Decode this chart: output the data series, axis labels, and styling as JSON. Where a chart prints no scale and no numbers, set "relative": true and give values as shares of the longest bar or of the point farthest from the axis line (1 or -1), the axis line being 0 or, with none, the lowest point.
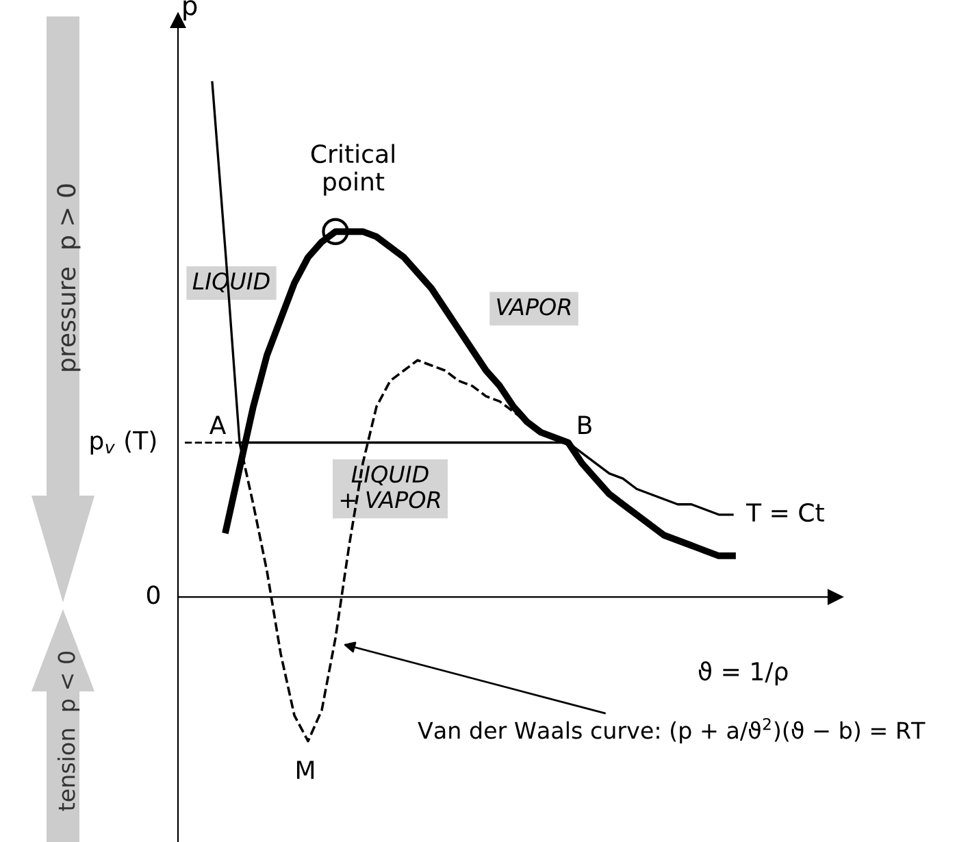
{
  "chart_data": {
    "type": "line",
    "relative": true,
    "xlabel": "ϑ = 1/ρ",
    "ylabel": "p",
    "categories": [
      null,
      null,
      null,
      null,
      null,
      null,
      null,
      null,
      null,
      null,
      null,
      null,
      null,
      null,
      null,
      null,
      null,
      null,
      null,
      null,
      null,
      null,
      null,
      null,
      null,
      null,
      null,
      null,
      null,
      null,
      null,
      null,
      null,
      null,
      null,
      null,
      null,
      null,
      null,
      null,
      null,
      null,
      null,
      null,
      null,
      null
    ],
    "series": [
      {
        "color": "#000000",
        "line_style": "dashed",
        "values": [
          0.3,
          0.3,
          0.3,
          0.3,
          0.3,
          null,
          null,
          null,
          null,
          null,
          null,
          null,
          null,
          null,
          null,
          null,
          null,
          null,
          null,
          null,
          null,
          null,
          null,
          null,
          null,
          null,
          null,
          null,
          null,
          null,
          null,
          null,
          null,
          null,
          null,
          null,
          null,
          null,
          null,
          null,
          null,
          null,
          null,
          null,
          null,
          null
        ]
      },
      {
        "name": "T = Ct",
        "color": "#000000",
        "line_style": "solid",
        "values": [
          null,
          null,
          1.0,
          0.66,
          0.3,
          0.3,
          0.3,
          0.3,
          0.3,
          0.3,
          0.3,
          0.3,
          0.3,
          0.3,
          0.3,
          0.3,
          0.3,
          0.3,
          0.3,
          0.3,
          0.3,
          0.3,
          0.3,
          0.3,
          0.3,
          0.3,
          0.3,
          0.3,
          0.3,
          0.28,
          0.26,
          0.24,
          0.23,
          0.21,
          0.2,
          0.19,
          0.18,
          0.18,
          0.17,
          0.16,
          0.16,
          null,
          null,
          null,
          null,
          null
        ]
      },
      {
        "color": "#000000",
        "line_style": "solid",
        "values": [
          null,
          null,
          null,
          0.13,
          0.25,
          0.37,
          0.47,
          0.54,
          0.61,
          0.66,
          0.69,
          0.71,
          0.71,
          0.71,
          0.7,
          0.68,
          0.66,
          0.63,
          0.6,
          0.56,
          0.52,
          0.48,
          0.44,
          0.41,
          0.37,
          0.34,
          0.32,
          0.31,
          0.3,
          0.26,
          0.23,
          0.2,
          0.18,
          0.16,
          0.14,
          0.12,
          0.11,
          0.1,
          0.09,
          0.08,
          0.08,
          null,
          null,
          null,
          null,
          null
        ]
      },
      {
        "color": "#000000",
        "line_style": "dashed",
        "values": [
          null,
          null,
          null,
          null,
          0.3,
          0.18,
          0.05,
          -0.11,
          -0.23,
          -0.28,
          -0.22,
          -0.08,
          0.1,
          0.26,
          0.37,
          0.42,
          0.44,
          0.46,
          0.45,
          0.44,
          0.42,
          0.41,
          0.39,
          0.38,
          0.36,
          0.34,
          0.32,
          0.31,
          0.3,
          null,
          null,
          null,
          null,
          null,
          null,
          null,
          null,
          null,
          null,
          null,
          null,
          null,
          null,
          null,
          null,
          null
        ]
      }
    ],
    "annotations": [
      "p$_{v}$ (T)",
      "Critical\npoint",
      "LIQUID",
      "VAPOR",
      "LIQUID\n+ VAPOR",
      "A",
      "B",
      "M",
      "0",
      "Van der Waals curve: (p + a/ϑ$^{2}$)(ϑ − b) = RT",
      "pressure  p > 0",
      "tension  p < 0"
    ],
    "legend": false
  }
}
